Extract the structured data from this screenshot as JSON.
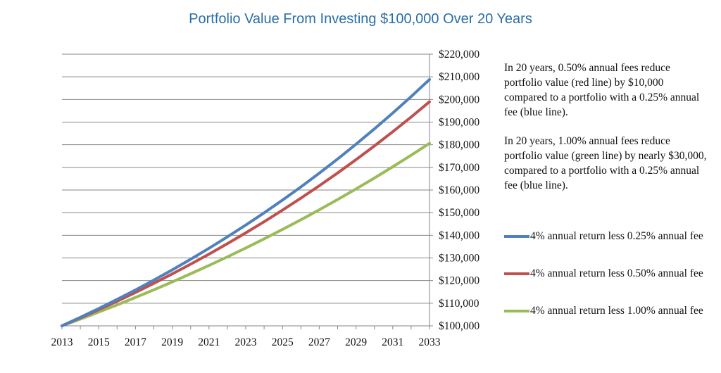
{
  "chart_data": {
    "type": "line",
    "title": "Portfolio Value From Investing $100,000 Over 20 Years",
    "x": [
      2013,
      2014,
      2015,
      2016,
      2017,
      2018,
      2019,
      2020,
      2021,
      2022,
      2023,
      2024,
      2025,
      2026,
      2027,
      2028,
      2029,
      2030,
      2031,
      2032,
      2033
    ],
    "x_tick_labels": [
      "2013",
      "2015",
      "2017",
      "2019",
      "2021",
      "2023",
      "2025",
      "2027",
      "2029",
      "2031",
      "2033"
    ],
    "y_tick_labels": [
      "$100,000",
      "$110,000",
      "$120,000",
      "$130,000",
      "$140,000",
      "$150,000",
      "$160,000",
      "$170,000",
      "$180,000",
      "$190,000",
      "$200,000",
      "$210,000",
      "$220,000"
    ],
    "xlim": [
      2013,
      2033
    ],
    "ylim": [
      100000,
      220000
    ],
    "y_axis_side": "right",
    "grid": "horizontal",
    "series": [
      {
        "name": "4% annual return less 0.25% annual fee",
        "color": "#4f81bd",
        "values": [
          100000,
          103750,
          107640,
          111680,
          115870,
          120210,
          124720,
          129400,
          134250,
          139280,
          144510,
          149930,
          155550,
          161380,
          167430,
          173710,
          180230,
          186990,
          194000,
          201270,
          208820
        ]
      },
      {
        "name": "4% annual return less 0.50% annual fee",
        "color": "#c0504d",
        "values": [
          100000,
          103500,
          107120,
          110870,
          114750,
          118770,
          122930,
          127230,
          131680,
          136290,
          141060,
          145990,
          151100,
          156390,
          161870,
          167530,
          173390,
          179460,
          185740,
          192240,
          198970
        ]
      },
      {
        "name": "4% annual return less 1.00% annual fee",
        "color": "#9bbb59",
        "values": [
          100000,
          103000,
          106090,
          109270,
          112550,
          115930,
          119410,
          122990,
          126680,
          130480,
          134390,
          138420,
          142580,
          146860,
          151260,
          155800,
          160470,
          165290,
          170250,
          175360,
          180610
        ]
      }
    ]
  },
  "annotations": {
    "note_1": "In 20 years, 0.50% annual fees reduce portfolio value (red line) by $10,000 compared to a portfolio with a 0.25% annual fee (blue line).",
    "note_2": "In 20 years, 1.00% annual fees reduce portfolio value (green line) by nearly $30,000, compared to a portfolio with a 0.25% annual fee (blue line)."
  },
  "legend": {
    "items": [
      {
        "label": "4% annual return less 0.25% annual fee",
        "color": "#4f81bd"
      },
      {
        "label": "4% annual return less 0.50% annual fee",
        "color": "#c0504d"
      },
      {
        "label": "4% annual return less 1.00% annual fee",
        "color": "#9bbb59"
      }
    ]
  }
}
